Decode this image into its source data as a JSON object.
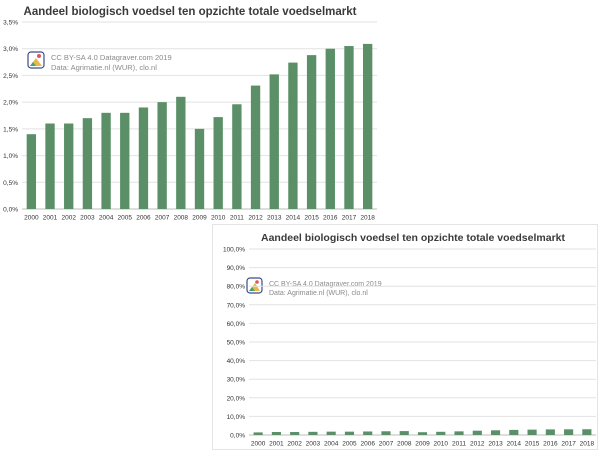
{
  "colors": {
    "bar": "#5a8f67",
    "grid": "#e2e2e2",
    "text": "#333333"
  },
  "chart_data": [
    {
      "type": "bar",
      "title": "Aandeel biologisch voedsel ten opzichte totale voedselmarkt",
      "categories": [
        "2000",
        "2001",
        "2002",
        "2003",
        "2004",
        "2005",
        "2006",
        "2007",
        "2008",
        "2009",
        "2010",
        "2011",
        "2012",
        "2013",
        "2014",
        "2015",
        "2016",
        "2017",
        "2018"
      ],
      "values": [
        1.4,
        1.6,
        1.6,
        1.7,
        1.8,
        1.8,
        1.9,
        2.0,
        2.1,
        1.5,
        1.72,
        1.96,
        2.31,
        2.52,
        2.74,
        2.88,
        3.0,
        3.05,
        3.09
      ],
      "ylim": [
        0,
        3.5
      ],
      "yticks": [
        "0,0%",
        "0,5%",
        "1,0%",
        "1,5%",
        "2,0%",
        "2,5%",
        "3,0%",
        "3,5%"
      ],
      "credit_line1": "CC BY-SA 4.0 Datagraver.com 2019",
      "credit_line2": "Data: Agrimatie.nl (WUR), clo.nl",
      "grid": true
    },
    {
      "type": "bar",
      "title": "Aandeel biologisch voedsel ten opzichte totale voedselmarkt",
      "categories": [
        "2000",
        "2001",
        "2002",
        "2003",
        "2004",
        "2005",
        "2006",
        "2007",
        "2008",
        "2009",
        "2010",
        "2011",
        "2012",
        "2013",
        "2014",
        "2015",
        "2016",
        "2017",
        "2018"
      ],
      "values": [
        1.4,
        1.6,
        1.6,
        1.7,
        1.8,
        1.8,
        1.9,
        2.0,
        2.1,
        1.5,
        1.72,
        1.96,
        2.31,
        2.52,
        2.74,
        2.88,
        3.0,
        3.05,
        3.09
      ],
      "ylim": [
        0,
        100
      ],
      "yticks": [
        "0,0%",
        "10,0%",
        "20,0%",
        "30,0%",
        "40,0%",
        "50,0%",
        "60,0%",
        "70,0%",
        "80,0%",
        "90,0%",
        "100,0%"
      ],
      "credit_line1": "CC BY-SA 4.0 Datagraver.com 2019",
      "credit_line2": "Data: Agrimatie.nl (WUR), clo.nl",
      "grid": true
    }
  ]
}
